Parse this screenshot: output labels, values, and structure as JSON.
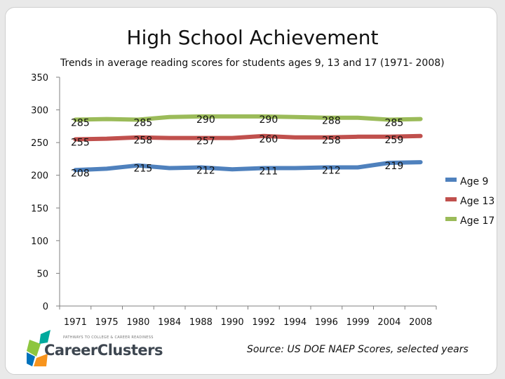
{
  "chart_data": {
    "type": "line",
    "title": "High School Achievement",
    "subtitle": "Trends in average reading scores for students ages 9, 13 and 17 (1971- 2008)",
    "categories": [
      "1971",
      "1975",
      "1980",
      "1984",
      "1988",
      "1990",
      "1992",
      "1994",
      "1996",
      "1999",
      "2004",
      "2008"
    ],
    "ylim": [
      0,
      350
    ],
    "yticks": [
      0,
      50,
      100,
      150,
      200,
      250,
      300,
      350
    ],
    "legend": "right",
    "grid": false,
    "series": [
      {
        "name": "Age 9",
        "color": "#4f81bd",
        "values": [
          208,
          210,
          215,
          211,
          212,
          209,
          211,
          211,
          212,
          212,
          219,
          220
        ],
        "labels": [
          {
            "at": 0,
            "text": "208"
          },
          {
            "at": 2,
            "text": "215"
          },
          {
            "at": 4,
            "text": "212"
          },
          {
            "at": 6,
            "text": "211"
          },
          {
            "at": 8,
            "text": "212"
          },
          {
            "at": 10,
            "text": "219"
          }
        ]
      },
      {
        "name": "Age 13",
        "color": "#c0504d",
        "values": [
          255,
          256,
          258,
          257,
          257,
          257,
          260,
          258,
          258,
          259,
          259,
          260
        ],
        "labels": [
          {
            "at": 0,
            "text": "255"
          },
          {
            "at": 2,
            "text": "258"
          },
          {
            "at": 4,
            "text": "257"
          },
          {
            "at": 6,
            "text": "260"
          },
          {
            "at": 8,
            "text": "258"
          },
          {
            "at": 10,
            "text": "259"
          }
        ]
      },
      {
        "name": "Age 17",
        "color": "#9bbb59",
        "values": [
          285,
          286,
          285,
          289,
          290,
          290,
          290,
          289,
          288,
          288,
          285,
          286
        ],
        "labels": [
          {
            "at": 0,
            "text": "285"
          },
          {
            "at": 2,
            "text": "285"
          },
          {
            "at": 4,
            "text": "290"
          },
          {
            "at": 6,
            "text": "290"
          },
          {
            "at": 8,
            "text": "288"
          },
          {
            "at": 10,
            "text": "285"
          }
        ]
      }
    ]
  },
  "source": "Source: US DOE NAEP Scores, selected years",
  "logo": {
    "name": "CareerClusters",
    "tagline": "PATHWAYS TO COLLEGE & CAREER READINESS"
  }
}
